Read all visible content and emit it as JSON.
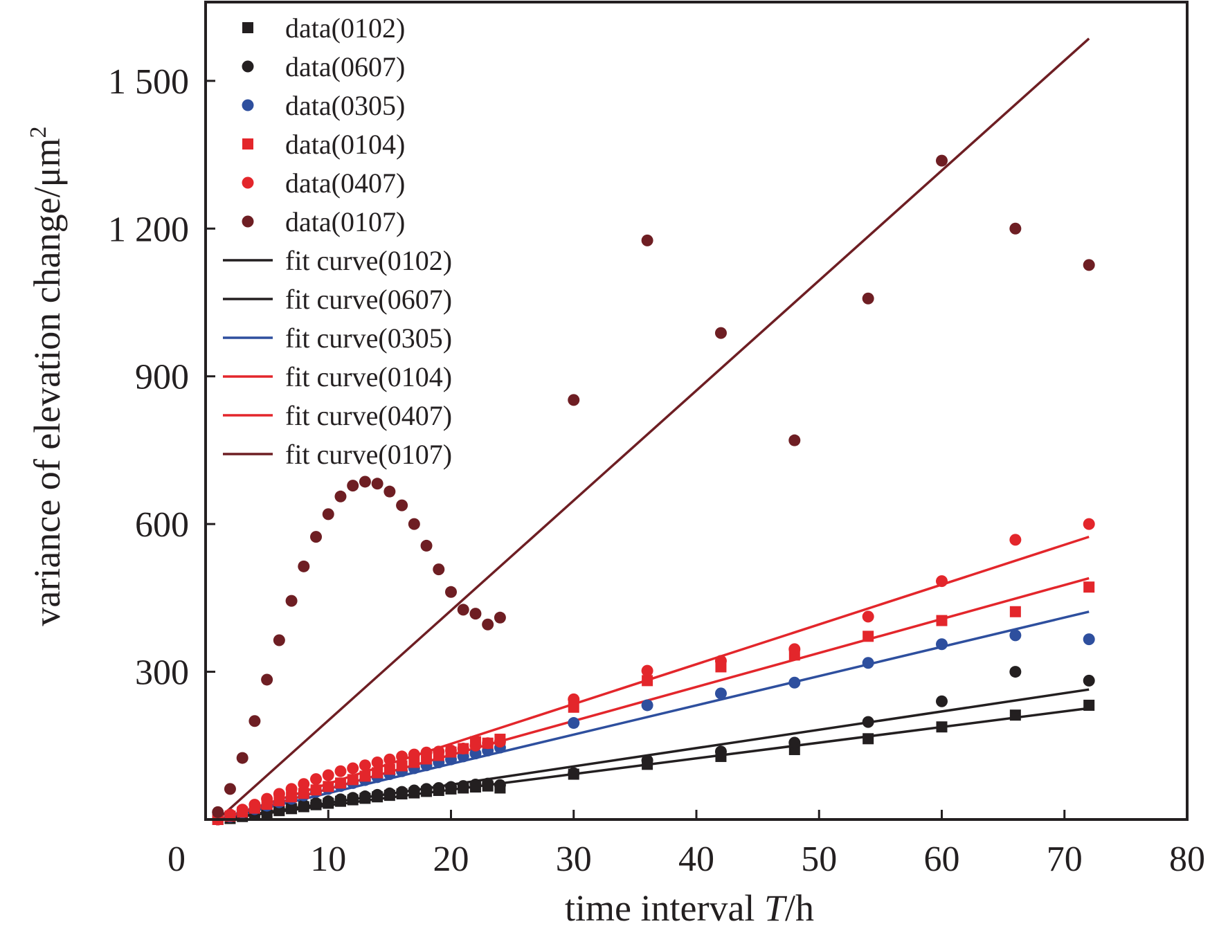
{
  "chart_data": {
    "type": "scatter",
    "title": "",
    "xlabel_prefix": "time interval ",
    "xlabel_var": "T",
    "xlabel_unit": "/h",
    "ylabel_text": "variance of elevation change/μm",
    "ylabel_sup": "2",
    "xlim": [
      0,
      80
    ],
    "ylim": [
      0,
      1660
    ],
    "x_ticks": [
      0,
      10,
      20,
      30,
      40,
      50,
      60,
      70,
      80
    ],
    "x_tick_labels": [
      "0",
      "10",
      "20",
      "30",
      "40",
      "50",
      "60",
      "70",
      "80"
    ],
    "y_ticks": [
      300,
      600,
      900,
      1200,
      1500
    ],
    "y_tick_labels": [
      "300",
      "600",
      "900",
      "1 200",
      "1 500"
    ],
    "grid": false,
    "legend_position": "top-left",
    "series": [
      {
        "name": "data(0102)",
        "kind": "points",
        "marker": "square",
        "color": "#231f20",
        "x": [
          1,
          2,
          3,
          4,
          5,
          6,
          7,
          8,
          9,
          10,
          11,
          12,
          13,
          14,
          15,
          16,
          17,
          18,
          19,
          20,
          21,
          22,
          23,
          24,
          30,
          36,
          42,
          48,
          54,
          60,
          66,
          72
        ],
        "y": [
          0,
          2,
          6,
          10,
          13,
          18,
          22,
          26,
          30,
          33,
          37,
          40,
          43,
          46,
          49,
          52,
          54,
          57,
          59,
          62,
          64,
          66,
          68,
          64,
          92,
          112,
          128,
          142,
          164,
          188,
          212,
          232
        ]
      },
      {
        "name": "data(0607)",
        "kind": "points",
        "marker": "circle",
        "color": "#231f20",
        "x": [
          1,
          2,
          3,
          4,
          5,
          6,
          7,
          8,
          9,
          10,
          11,
          12,
          13,
          14,
          15,
          16,
          17,
          18,
          19,
          20,
          21,
          22,
          23,
          24,
          30,
          36,
          42,
          48,
          54,
          60,
          66,
          72
        ],
        "y": [
          0,
          3,
          7,
          12,
          16,
          20,
          25,
          29,
          33,
          37,
          41,
          44,
          47,
          50,
          53,
          56,
          59,
          62,
          64,
          66,
          68,
          71,
          73,
          70,
          94,
          120,
          138,
          156,
          198,
          240,
          300,
          282
        ]
      },
      {
        "name": "data(0305)",
        "kind": "points",
        "marker": "circle",
        "color": "#2e4f9e",
        "x": [
          1,
          2,
          3,
          4,
          5,
          6,
          7,
          8,
          9,
          10,
          11,
          12,
          13,
          14,
          15,
          16,
          17,
          18,
          19,
          20,
          21,
          22,
          23,
          24,
          30,
          36,
          42,
          48,
          54,
          60,
          66,
          72
        ],
        "y": [
          0,
          6,
          14,
          21,
          28,
          35,
          42,
          49,
          56,
          62,
          68,
          74,
          80,
          86,
          92,
          98,
          104,
          110,
          116,
          122,
          128,
          134,
          140,
          146,
          196,
          232,
          256,
          278,
          318,
          356,
          374,
          366
        ]
      },
      {
        "name": "data(0104)",
        "kind": "points",
        "marker": "square",
        "color": "#e3262b",
        "x": [
          1,
          2,
          3,
          4,
          5,
          6,
          7,
          8,
          9,
          10,
          11,
          12,
          13,
          14,
          15,
          16,
          17,
          18,
          19,
          20,
          21,
          22,
          23,
          24,
          30,
          36,
          42,
          48,
          54,
          60,
          66,
          72
        ],
        "y": [
          0,
          7,
          15,
          23,
          31,
          38,
          46,
          53,
          60,
          67,
          74,
          81,
          88,
          95,
          102,
          109,
          116,
          123,
          130,
          137,
          144,
          158,
          155,
          163,
          228,
          282,
          310,
          334,
          372,
          404,
          422,
          472
        ]
      },
      {
        "name": "data(0407)",
        "kind": "points",
        "marker": "circle",
        "color": "#e3262b",
        "x": [
          1,
          2,
          3,
          4,
          5,
          6,
          7,
          8,
          9,
          10,
          11,
          12,
          13,
          14,
          15,
          16,
          17,
          18,
          19,
          20,
          21,
          22,
          23,
          24,
          30,
          36,
          42,
          48,
          54,
          60,
          66,
          72
        ],
        "y": [
          0,
          10,
          20,
          30,
          42,
          52,
          62,
          72,
          82,
          90,
          98,
          104,
          110,
          116,
          122,
          128,
          132,
          136,
          138,
          140,
          144,
          150,
          155,
          158,
          244,
          302,
          322,
          346,
          412,
          484,
          568,
          600
        ]
      },
      {
        "name": "data(0107)",
        "kind": "points",
        "marker": "circle",
        "color": "#6e1e23",
        "x": [
          1,
          2,
          3,
          4,
          5,
          6,
          7,
          8,
          9,
          10,
          11,
          12,
          13,
          14,
          15,
          16,
          17,
          18,
          19,
          20,
          21,
          22,
          23,
          24,
          30,
          36,
          42,
          48,
          54,
          60,
          66,
          72
        ],
        "y": [
          15,
          62,
          125,
          200,
          284,
          364,
          444,
          514,
          574,
          620,
          656,
          678,
          686,
          682,
          666,
          638,
          600,
          556,
          508,
          462,
          426,
          418,
          396,
          410,
          852,
          1176,
          988,
          770,
          1058,
          1338,
          1200,
          1126
        ]
      },
      {
        "name": "fit curve(0102)",
        "kind": "line",
        "color": "#231f20",
        "x": [
          1,
          72
        ],
        "y": [
          0,
          226
        ]
      },
      {
        "name": "fit curve(0607)",
        "kind": "line",
        "color": "#231f20",
        "x": [
          1,
          72
        ],
        "y": [
          0,
          264
        ]
      },
      {
        "name": "fit curve(0305)",
        "kind": "line",
        "color": "#2e4f9e",
        "x": [
          1,
          72
        ],
        "y": [
          0,
          422
        ]
      },
      {
        "name": "fit curve(0104)",
        "kind": "line",
        "color": "#e3262b",
        "x": [
          1,
          72
        ],
        "y": [
          0,
          490
        ]
      },
      {
        "name": "fit curve(0407)",
        "kind": "line",
        "color": "#e3262b",
        "x": [
          1,
          72
        ],
        "y": [
          0,
          574
        ]
      },
      {
        "name": "fit curve(0107)",
        "kind": "line",
        "color": "#6e1e23",
        "x": [
          1,
          72
        ],
        "y": [
          0,
          1586
        ]
      }
    ]
  }
}
